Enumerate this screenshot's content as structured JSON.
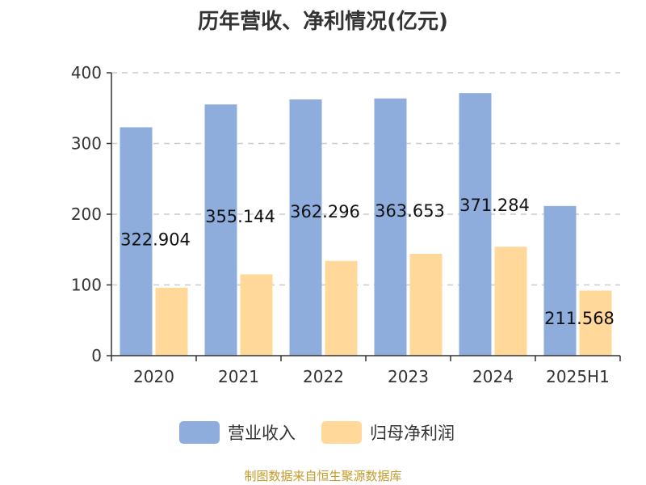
{
  "chart_data": {
    "type": "bar",
    "title": "历年营收、净利情况(亿元)",
    "categories": [
      "2020",
      "2021",
      "2022",
      "2023",
      "2024",
      "2025H1"
    ],
    "series": [
      {
        "name": "营业收入",
        "color": "#8eaddc",
        "values": [
          322.904,
          355.144,
          362.296,
          363.653,
          371.284,
          211.568
        ],
        "labels": [
          "322.904",
          "355.144",
          "362.296",
          "363.653",
          "371.284",
          "211.568"
        ]
      },
      {
        "name": "归母净利润",
        "color": "#ffd89a",
        "values": [
          96,
          115,
          134,
          144,
          154,
          92
        ]
      }
    ],
    "ylim": [
      0,
      400
    ],
    "yticks": [
      "0",
      "100",
      "200",
      "300",
      "400"
    ],
    "grid": true,
    "legend_position": "bottom"
  },
  "footer": {
    "source": "制图数据来自恒生聚源数据库"
  }
}
